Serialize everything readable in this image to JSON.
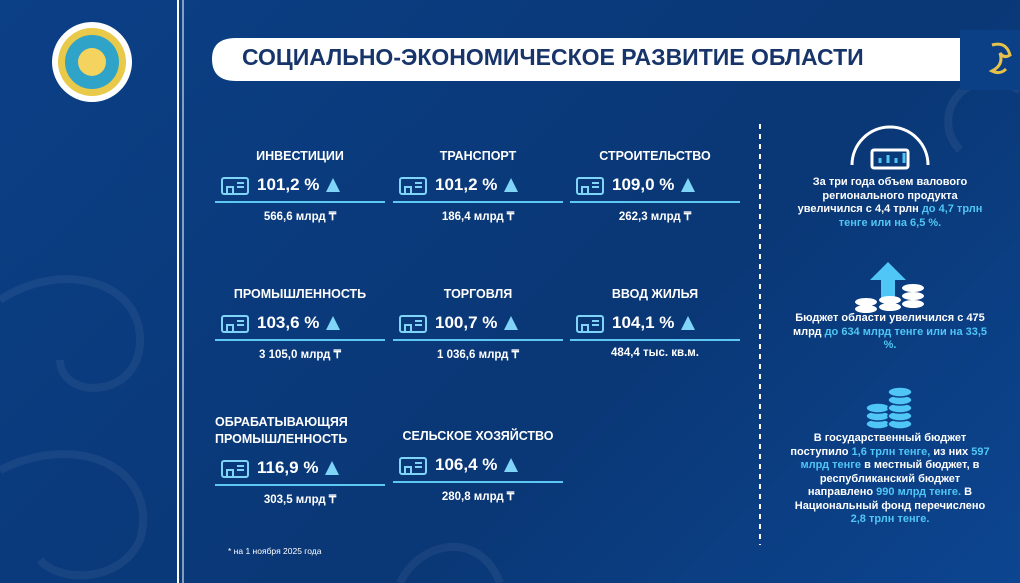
{
  "header": {
    "title": "СОЦИАЛЬНО-ЭКОНОМИЧЕСКОЕ РАЗВИТИЕ ОБЛАСТИ"
  },
  "cards": [
    {
      "name": "ИНВЕСТИЦИИ",
      "growth": "101,2 %",
      "amount": "566,6 млрд ₸"
    },
    {
      "name": "ТРАНСПОРТ",
      "growth": "101,2 %",
      "amount": "186,4 млрд ₸"
    },
    {
      "name": "СТРОИТЕЛЬСТВО",
      "growth": "109,0 %",
      "amount": "262,3 млрд ₸"
    },
    {
      "name": "ПРОМЫШЛЕННОСТЬ",
      "growth": "103,6 %",
      "amount": "3 105,0 млрд ₸"
    },
    {
      "name": "ТОРГОВЛЯ",
      "growth": "100,7 %",
      "amount": "1 036,6 млрд ₸"
    },
    {
      "name": "ВВОД ЖИЛЬЯ",
      "growth": "104,1 %",
      "amount": "484,4 тыс. кв.м."
    },
    {
      "name": "ОБРАБАТЫВАЮЩЯЯ ПРОМЫШЛЕННОСТЬ",
      "growth": "116,9 %",
      "amount": "303,5 млрд ₸"
    },
    {
      "name": "СЕЛЬСКОЕ ХОЗЯЙСТВО",
      "growth": "106,4 %",
      "amount": "280,8 млрд ₸"
    }
  ],
  "facts": [
    [
      {
        "text": "За три года объем валового регионального продукта увеличился с 4,4 трлн ",
        "accent": false
      },
      {
        "text": "до 4,7 трлн тенге или на 6,5 %.",
        "accent": true
      }
    ],
    [
      {
        "text": "Бюджет области увеличился с 475 млрд ",
        "accent": false
      },
      {
        "text": "до 634 млрд тенге или на 33,5 %.",
        "accent": true
      }
    ],
    [
      {
        "text": "В государственный бюджет поступило ",
        "accent": false
      },
      {
        "text": "1,6 трлн тенге,",
        "accent": true
      },
      {
        "text": " из них ",
        "accent": false
      },
      {
        "text": "597 млрд тенге",
        "accent": true
      },
      {
        "text": " в местный бюджет, в республиканский бюджет направлено ",
        "accent": false
      },
      {
        "text": "990 млрд тенге.",
        "accent": true
      },
      {
        "text": " В Национальный фонд перечислено ",
        "accent": false
      },
      {
        "text": "2,8 трлн тенге.",
        "accent": true
      }
    ]
  ],
  "footnote": "* на 1 ноября 2025 года"
}
